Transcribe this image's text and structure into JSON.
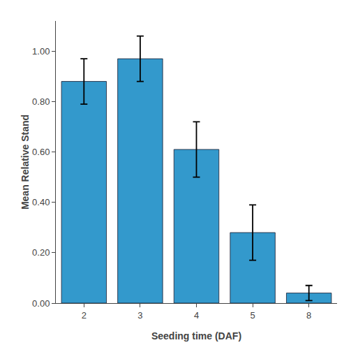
{
  "chart_data": {
    "type": "bar",
    "categories": [
      "2",
      "3",
      "4",
      "5",
      "8"
    ],
    "values": [
      0.88,
      0.97,
      0.61,
      0.28,
      0.04
    ],
    "errors": [
      0.09,
      0.09,
      0.11,
      0.11,
      0.03
    ],
    "color": "#3399CC",
    "xlabel": "Seeding time (DAF)",
    "ylabel": "Mean Relative Stand",
    "ylim": [
      0,
      1.12
    ],
    "yticks": [
      {
        "value": 0,
        "label": "0.00"
      },
      {
        "value": 0.2,
        "label": "0.20"
      },
      {
        "value": 0.4,
        "label": "0.40"
      },
      {
        "value": 0.6,
        "label": "0.60"
      },
      {
        "value": 0.8,
        "label": "0.80"
      },
      {
        "value": 1,
        "label": "1.00"
      }
    ],
    "grid": false
  }
}
